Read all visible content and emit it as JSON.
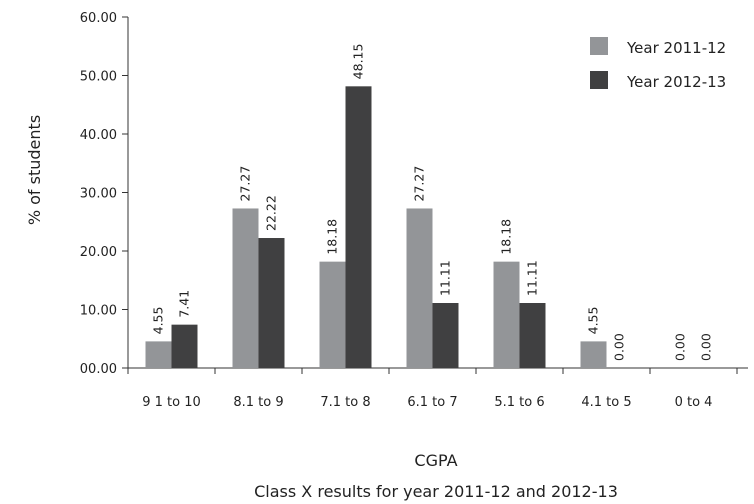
{
  "chart_data": {
    "type": "bar",
    "title": "Class X results for year 2011-12 and 2012-13",
    "xlabel": "CGPA",
    "ylabel": "% of students",
    "ylim": [
      0,
      60
    ],
    "yticks": [
      "00.00",
      "10.00",
      "20.00",
      "30.00",
      "40.00",
      "50.00",
      "60.00"
    ],
    "categories": [
      "9 1 to 10",
      "8.1 to 9",
      "7.1 to 8",
      "6.1 to 7",
      "5.1 to 6",
      "4.1 to 5",
      "0 to 4"
    ],
    "series": [
      {
        "name": "Year 2011-12",
        "color": "#939598",
        "values": [
          4.55,
          27.27,
          18.18,
          27.27,
          18.18,
          4.55,
          0.0
        ],
        "labels": [
          "4.55",
          "27.27",
          "18.18",
          "27.27",
          "18.18",
          "4.55",
          "0.00"
        ]
      },
      {
        "name": "Year 2012-13",
        "color": "#404041",
        "values": [
          7.41,
          22.22,
          48.15,
          11.11,
          11.11,
          0.0,
          0.0
        ],
        "labels": [
          "7.41",
          "22.22",
          "48.15",
          "11.11",
          "11.11",
          "0.00",
          "0.00"
        ]
      }
    ],
    "grid": false,
    "legend": "top-right"
  }
}
